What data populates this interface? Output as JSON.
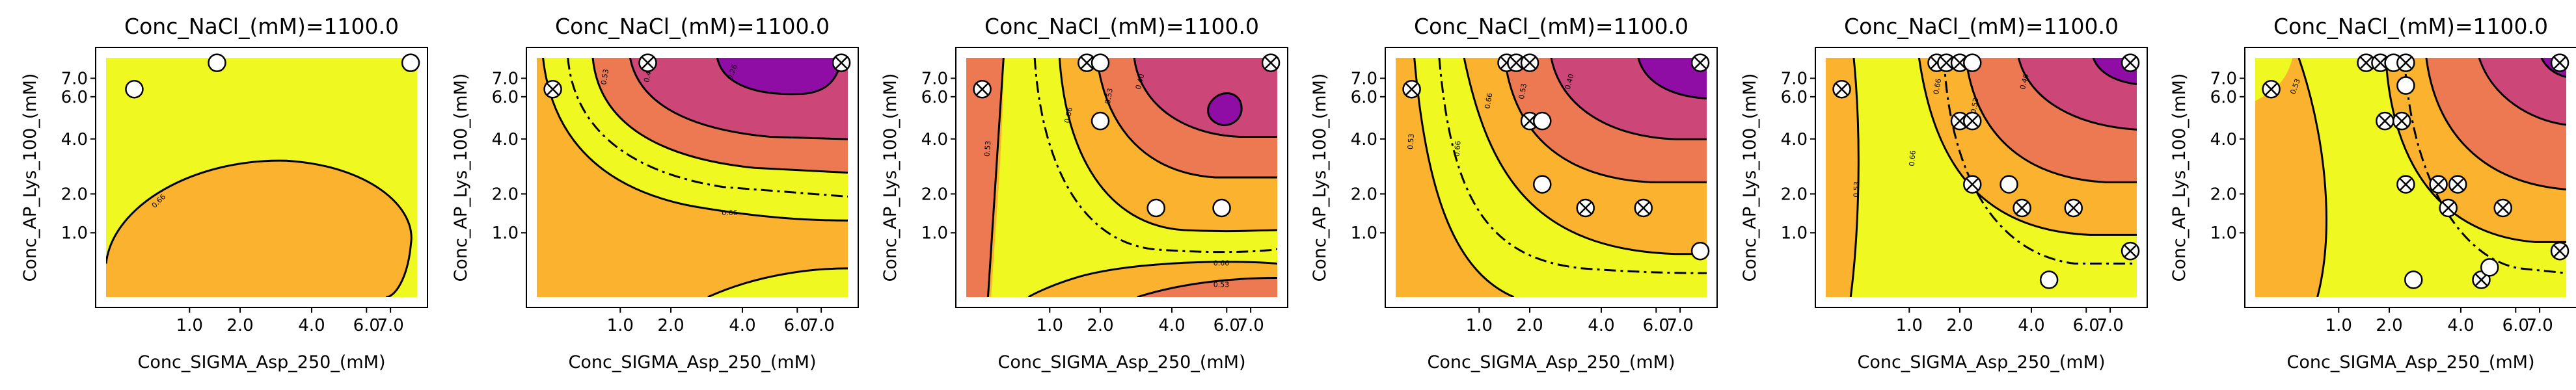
{
  "figure": {
    "panel_count": 6,
    "title": "Conc_NaCl_(mM)=1100.0",
    "xlabel": "Conc_SIGMA_Asp_250_(mM)",
    "ylabel": "Conc_AP_Lys_100_(mM)",
    "xticks": [
      "1.0",
      "2.0",
      "4.0",
      "6.0",
      "7.0"
    ],
    "yticks": [
      "1.0",
      "2.0",
      "4.0",
      "6.0",
      "7.0"
    ]
  },
  "colors": {
    "level_low": "#ed7953",
    "level_mid": "#fbb32f",
    "level_high": "#eff821",
    "level_top_a": "#cc4778",
    "level_top_b": "#8f0da4"
  },
  "chart_data": [
    {
      "type": "contour",
      "title": "Conc_NaCl_(mM)=1100.0",
      "xlabel": "Conc_SIGMA_Asp_250_(mM)",
      "ylabel": "Conc_AP_Lys_100_(mM)",
      "xlim": [
        0.1,
        8.2
      ],
      "ylim": [
        0.1,
        8.2
      ],
      "x_scale": "sqrt",
      "y_scale": "sqrt",
      "contour_labels": [
        "0.66"
      ],
      "points": [
        {
          "x": 0.3,
          "y": 6.4,
          "marker": "circle"
        },
        {
          "x": 1.5,
          "y": 7.9,
          "marker": "circle"
        },
        {
          "x": 7.9,
          "y": 7.9,
          "marker": "circle"
        }
      ]
    },
    {
      "type": "contour",
      "title": "Conc_NaCl_(mM)=1100.0",
      "xlabel": "Conc_SIGMA_Asp_250_(mM)",
      "ylabel": "Conc_AP_Lys_100_(mM)",
      "xlim": [
        0.1,
        8.2
      ],
      "ylim": [
        0.1,
        8.2
      ],
      "x_scale": "sqrt",
      "y_scale": "sqrt",
      "contour_labels": [
        "0.66",
        "0.53",
        "0.40",
        "0.26"
      ],
      "points": [
        {
          "x": 0.2,
          "y": 6.4,
          "marker": "crossed"
        },
        {
          "x": 1.5,
          "y": 7.9,
          "marker": "crossed"
        },
        {
          "x": 7.9,
          "y": 7.9,
          "marker": "crossed"
        }
      ]
    },
    {
      "type": "contour",
      "title": "Conc_NaCl_(mM)=1100.0",
      "xlabel": "Conc_SIGMA_Asp_250_(mM)",
      "ylabel": "Conc_AP_Lys_100_(mM)",
      "xlim": [
        0.1,
        8.2
      ],
      "ylim": [
        0.1,
        8.2
      ],
      "x_scale": "sqrt",
      "y_scale": "sqrt",
      "contour_labels": [
        "0.53",
        "0.66",
        "0.53",
        "0.40",
        "0.66",
        "0.53"
      ],
      "points": [
        {
          "x": 0.2,
          "y": 6.4,
          "marker": "crossed"
        },
        {
          "x": 1.7,
          "y": 7.9,
          "marker": "crossed"
        },
        {
          "x": 2.0,
          "y": 7.9,
          "marker": "circle"
        },
        {
          "x": 2.0,
          "y": 4.8,
          "marker": "circle"
        },
        {
          "x": 3.5,
          "y": 1.6,
          "marker": "circle"
        },
        {
          "x": 5.8,
          "y": 1.6,
          "marker": "circle"
        },
        {
          "x": 7.9,
          "y": 7.9,
          "marker": "crossed"
        }
      ]
    },
    {
      "type": "contour",
      "title": "Conc_NaCl_(mM)=1100.0",
      "xlabel": "Conc_SIGMA_Asp_250_(mM)",
      "ylabel": "Conc_AP_Lys_100_(mM)",
      "xlim": [
        0.1,
        8.2
      ],
      "ylim": [
        0.1,
        8.2
      ],
      "x_scale": "sqrt",
      "y_scale": "sqrt",
      "contour_labels": [
        "0.53",
        "0.66",
        "0.66",
        "0.53",
        "0.40"
      ],
      "points": [
        {
          "x": 0.2,
          "y": 6.4,
          "marker": "crossed"
        },
        {
          "x": 1.5,
          "y": 7.9,
          "marker": "crossed"
        },
        {
          "x": 1.7,
          "y": 7.9,
          "marker": "crossed"
        },
        {
          "x": 2.0,
          "y": 7.9,
          "marker": "crossed"
        },
        {
          "x": 2.0,
          "y": 4.8,
          "marker": "crossed"
        },
        {
          "x": 2.3,
          "y": 4.8,
          "marker": "circle"
        },
        {
          "x": 2.3,
          "y": 2.3,
          "marker": "circle"
        },
        {
          "x": 3.5,
          "y": 1.6,
          "marker": "crossed"
        },
        {
          "x": 5.5,
          "y": 1.6,
          "marker": "crossed"
        },
        {
          "x": 7.9,
          "y": 7.9,
          "marker": "crossed"
        },
        {
          "x": 7.9,
          "y": 0.65,
          "marker": "circle"
        }
      ]
    },
    {
      "type": "contour",
      "title": "Conc_NaCl_(mM)=1100.0",
      "xlabel": "Conc_SIGMA_Asp_250_(mM)",
      "ylabel": "Conc_AP_Lys_100_(mM)",
      "xlim": [
        0.1,
        8.2
      ],
      "ylim": [
        0.1,
        8.2
      ],
      "x_scale": "sqrt",
      "y_scale": "sqrt",
      "contour_labels": [
        "0.53",
        "0.66",
        "0.66",
        "0.53",
        "0.40"
      ],
      "points": [
        {
          "x": 0.2,
          "y": 6.4,
          "marker": "crossed"
        },
        {
          "x": 1.5,
          "y": 7.9,
          "marker": "crossed"
        },
        {
          "x": 1.7,
          "y": 7.9,
          "marker": "crossed"
        },
        {
          "x": 2.0,
          "y": 7.9,
          "marker": "crossed"
        },
        {
          "x": 2.3,
          "y": 7.9,
          "marker": "circle"
        },
        {
          "x": 2.0,
          "y": 4.8,
          "marker": "crossed"
        },
        {
          "x": 2.3,
          "y": 4.8,
          "marker": "crossed"
        },
        {
          "x": 2.3,
          "y": 2.3,
          "marker": "crossed"
        },
        {
          "x": 3.3,
          "y": 2.3,
          "marker": "circle"
        },
        {
          "x": 3.7,
          "y": 1.6,
          "marker": "crossed"
        },
        {
          "x": 4.6,
          "y": 0.25,
          "marker": "circle"
        },
        {
          "x": 5.5,
          "y": 1.6,
          "marker": "crossed"
        },
        {
          "x": 7.9,
          "y": 7.9,
          "marker": "crossed"
        },
        {
          "x": 7.9,
          "y": 0.65,
          "marker": "crossed"
        }
      ]
    },
    {
      "type": "contour",
      "title": "Conc_NaCl_(mM)=1100.0",
      "xlabel": "Conc_SIGMA_Asp_250_(mM)",
      "ylabel": "Conc_AP_Lys_100_(mM)",
      "xlim": [
        0.1,
        8.2
      ],
      "ylim": [
        0.1,
        8.2
      ],
      "x_scale": "sqrt",
      "y_scale": "sqrt",
      "contour_labels": [
        "0.53"
      ],
      "points": [
        {
          "x": 0.2,
          "y": 6.4,
          "marker": "crossed"
        },
        {
          "x": 1.5,
          "y": 7.9,
          "marker": "crossed"
        },
        {
          "x": 1.8,
          "y": 7.9,
          "marker": "crossed"
        },
        {
          "x": 2.1,
          "y": 7.9,
          "marker": "circle"
        },
        {
          "x": 2.4,
          "y": 7.9,
          "marker": "crossed"
        },
        {
          "x": 2.4,
          "y": 6.6,
          "marker": "circle"
        },
        {
          "x": 1.9,
          "y": 4.8,
          "marker": "crossed"
        },
        {
          "x": 2.3,
          "y": 4.8,
          "marker": "crossed"
        },
        {
          "x": 2.4,
          "y": 2.3,
          "marker": "crossed"
        },
        {
          "x": 3.3,
          "y": 2.3,
          "marker": "crossed"
        },
        {
          "x": 3.9,
          "y": 2.3,
          "marker": "crossed"
        },
        {
          "x": 3.6,
          "y": 1.6,
          "marker": "crossed"
        },
        {
          "x": 5.5,
          "y": 1.6,
          "marker": "crossed"
        },
        {
          "x": 2.6,
          "y": 0.25,
          "marker": "circle"
        },
        {
          "x": 4.7,
          "y": 0.25,
          "marker": "crossed"
        },
        {
          "x": 5.0,
          "y": 0.4,
          "marker": "circle"
        },
        {
          "x": 7.9,
          "y": 7.9,
          "marker": "crossed"
        },
        {
          "x": 7.9,
          "y": 0.65,
          "marker": "crossed"
        }
      ]
    }
  ]
}
